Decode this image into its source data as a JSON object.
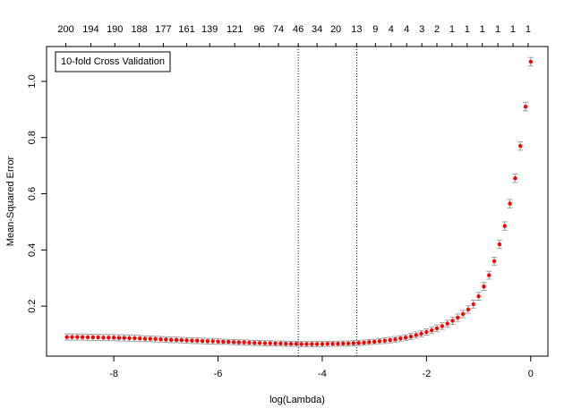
{
  "chart_data": {
    "type": "scatter",
    "annotation": "10-fold Cross Validation",
    "x_label": "log(Lambda)",
    "y_label": "Mean-Squared Error",
    "xlim": [
      -9.29,
      0.33
    ],
    "ylim": [
      0.022,
      1.124
    ],
    "xticks": [
      -8,
      -6,
      -4,
      -2,
      0
    ],
    "yticks": [
      0.2,
      0.4,
      0.6,
      0.8,
      {
        "value": 1,
        "label": "1.0"
      }
    ],
    "top_positions": [
      -8.92,
      -8.44,
      -7.98,
      -7.51,
      -7.05,
      -6.6,
      -6.16,
      -5.68,
      -5.21,
      -4.84,
      -4.46,
      -4.1,
      -3.74,
      -3.34,
      -2.98,
      -2.68,
      -2.38,
      -2.09,
      -1.8,
      -1.51,
      -1.22,
      -0.93,
      -0.63,
      -0.34,
      -0.05
    ],
    "top_labels": [
      200,
      194,
      190,
      188,
      177,
      161,
      139,
      121,
      96,
      74,
      46,
      34,
      20,
      13,
      9,
      4,
      4,
      3,
      2,
      1,
      1,
      1,
      1,
      1,
      1
    ],
    "vlines": [
      -4.46,
      -3.34
    ],
    "point_color": "#ff0000",
    "error_color": "#a0a0a0",
    "x": [
      -8.9,
      -8.8,
      -8.7,
      -8.6,
      -8.5,
      -8.4,
      -8.3,
      -8.2,
      -8.1,
      -8.0,
      -7.9,
      -7.8,
      -7.7,
      -7.6,
      -7.5,
      -7.4,
      -7.3,
      -7.2,
      -7.1,
      -7.0,
      -6.9,
      -6.8,
      -6.7,
      -6.6,
      -6.5,
      -6.4,
      -6.3,
      -6.2,
      -6.1,
      -6.0,
      -5.9,
      -5.8,
      -5.7,
      -5.6,
      -5.5,
      -5.4,
      -5.3,
      -5.2,
      -5.1,
      -5.0,
      -4.9,
      -4.8,
      -4.7,
      -4.6,
      -4.5,
      -4.4,
      -4.3,
      -4.2,
      -4.1,
      -4.0,
      -3.9,
      -3.8,
      -3.7,
      -3.6,
      -3.5,
      -3.4,
      -3.3,
      -3.2,
      -3.1,
      -3.0,
      -2.9,
      -2.8,
      -2.7,
      -2.6,
      -2.5,
      -2.4,
      -2.3,
      -2.2,
      -2.1,
      -2.0,
      -1.9,
      -1.8,
      -1.7,
      -1.6,
      -1.5,
      -1.4,
      -1.3,
      -1.2,
      -1.1,
      -1.0,
      -0.9,
      -0.8,
      -0.7,
      -0.6,
      -0.5,
      -0.4,
      -0.3,
      -0.2,
      -0.1,
      0.0
    ],
    "values": [
      0.09,
      0.09,
      0.09,
      0.09,
      0.089,
      0.089,
      0.089,
      0.088,
      0.088,
      0.088,
      0.087,
      0.087,
      0.086,
      0.086,
      0.085,
      0.084,
      0.084,
      0.083,
      0.082,
      0.081,
      0.08,
      0.08,
      0.079,
      0.078,
      0.077,
      0.077,
      0.076,
      0.075,
      0.075,
      0.074,
      0.073,
      0.073,
      0.072,
      0.071,
      0.071,
      0.07,
      0.069,
      0.069,
      0.068,
      0.068,
      0.067,
      0.067,
      0.066,
      0.066,
      0.066,
      0.065,
      0.065,
      0.065,
      0.065,
      0.065,
      0.066,
      0.066,
      0.066,
      0.067,
      0.067,
      0.068,
      0.069,
      0.07,
      0.072,
      0.073,
      0.075,
      0.077,
      0.079,
      0.082,
      0.085,
      0.088,
      0.092,
      0.097,
      0.102,
      0.108,
      0.114,
      0.121,
      0.129,
      0.138,
      0.148,
      0.159,
      0.172,
      0.188,
      0.207,
      0.235,
      0.27,
      0.31,
      0.36,
      0.42,
      0.485,
      0.565,
      0.655,
      0.77,
      0.91,
      1.07
    ],
    "errors": [
      0.011,
      0.011,
      0.011,
      0.011,
      0.011,
      0.011,
      0.011,
      0.011,
      0.011,
      0.011,
      0.011,
      0.011,
      0.011,
      0.011,
      0.011,
      0.01,
      0.01,
      0.01,
      0.01,
      0.01,
      0.01,
      0.01,
      0.01,
      0.01,
      0.01,
      0.01,
      0.01,
      0.01,
      0.01,
      0.01,
      0.009,
      0.009,
      0.009,
      0.009,
      0.009,
      0.009,
      0.009,
      0.009,
      0.009,
      0.009,
      0.009,
      0.009,
      0.009,
      0.009,
      0.009,
      0.009,
      0.009,
      0.009,
      0.009,
      0.009,
      0.009,
      0.009,
      0.009,
      0.009,
      0.009,
      0.009,
      0.009,
      0.009,
      0.009,
      0.009,
      0.009,
      0.01,
      0.01,
      0.01,
      0.01,
      0.01,
      0.011,
      0.011,
      0.011,
      0.011,
      0.012,
      0.012,
      0.012,
      0.012,
      0.013,
      0.013,
      0.013,
      0.013,
      0.014,
      0.014,
      0.014,
      0.014,
      0.014,
      0.015,
      0.015,
      0.015,
      0.015,
      0.015,
      0.015,
      0.015
    ]
  }
}
